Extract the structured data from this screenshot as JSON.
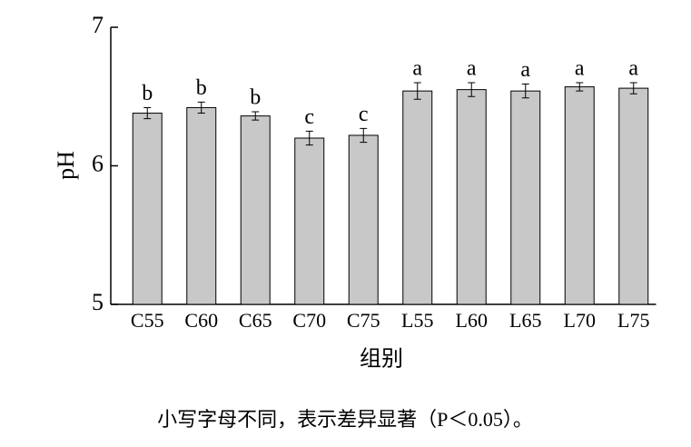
{
  "chart_data": {
    "type": "bar",
    "categories": [
      "C55",
      "C60",
      "C65",
      "C70",
      "C75",
      "L55",
      "L60",
      "L65",
      "L70",
      "L75"
    ],
    "values": [
      6.38,
      6.42,
      6.36,
      6.2,
      6.22,
      6.54,
      6.55,
      6.54,
      6.57,
      6.56
    ],
    "errors": [
      0.04,
      0.04,
      0.03,
      0.05,
      0.05,
      0.06,
      0.05,
      0.05,
      0.03,
      0.04
    ],
    "annotations": [
      "b",
      "b",
      "b",
      "c",
      "c",
      "a",
      "a",
      "a",
      "a",
      "a"
    ],
    "color": "#c8c8c8",
    "ylim": [
      5,
      7
    ],
    "yticks": [
      5,
      6,
      7
    ],
    "ylabel": "pH",
    "xlabel": "组别",
    "note": "小写字母不同，表示差异显著（P＜0.05）。"
  }
}
